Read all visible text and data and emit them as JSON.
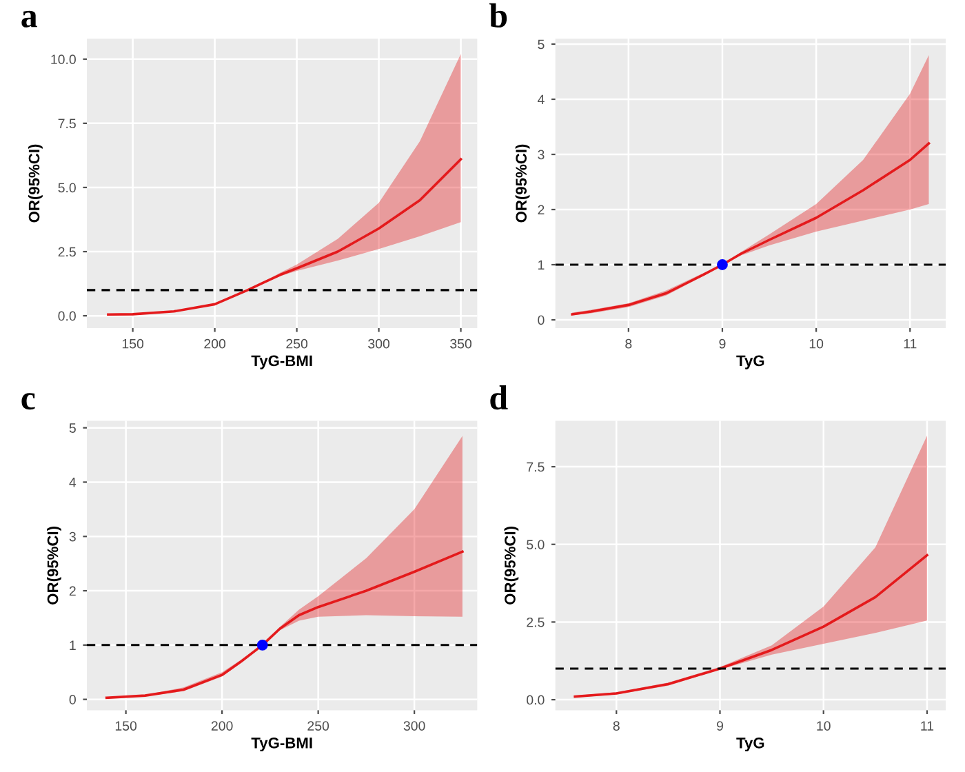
{
  "chart_data": [
    {
      "type": "line",
      "title": "a",
      "xlabel": "TyG-BMI",
      "ylabel": "OR(95%CI)",
      "xlim": [
        122,
        360
      ],
      "ylim": [
        -0.48,
        10.8
      ],
      "xticks": [
        150,
        200,
        250,
        300,
        350
      ],
      "yticks": [
        {
          "value": 0,
          "label": "0.0"
        },
        {
          "value": 2.5,
          "label": "2.5"
        },
        {
          "value": 5,
          "label": "5.0"
        },
        {
          "value": 7.5,
          "label": "7.5"
        },
        {
          "value": 10,
          "label": "10.0"
        }
      ],
      "grid": true,
      "series": [
        {
          "color": "#e41a1c",
          "x": [
            135,
            150,
            175,
            200,
            220,
            230,
            240,
            250,
            275,
            300,
            325,
            350
          ],
          "values": [
            0.05,
            0.06,
            0.17,
            0.45,
            1.0,
            1.3,
            1.6,
            1.85,
            2.5,
            3.4,
            4.5,
            6.1
          ],
          "lower": [
            0.04,
            0.05,
            0.15,
            0.42,
            0.97,
            1.27,
            1.55,
            1.75,
            2.15,
            2.6,
            3.1,
            3.65
          ],
          "upper": [
            0.06,
            0.07,
            0.19,
            0.48,
            1.03,
            1.33,
            1.68,
            2.0,
            3.0,
            4.4,
            6.8,
            10.2
          ]
        }
      ],
      "ref_lines": [
        {
          "axis": "y",
          "value": 1,
          "color": "#000000",
          "line_style": "dashed"
        }
      ]
    },
    {
      "type": "line",
      "title": "b",
      "xlabel": "TyG",
      "ylabel": "OR(95%CI)",
      "xlim": [
        7.22,
        11.38
      ],
      "ylim": [
        -0.15,
        5.1
      ],
      "xticks": [
        8,
        9,
        10,
        11
      ],
      "yticks": [
        0,
        1,
        2,
        3,
        4,
        5
      ],
      "grid": true,
      "series": [
        {
          "color": "#e41a1c",
          "x": [
            7.4,
            7.6,
            8,
            8.4,
            8.6,
            8.8,
            9,
            9.2,
            9.5,
            10,
            10.5,
            11,
            11.2
          ],
          "values": [
            0.1,
            0.15,
            0.27,
            0.48,
            0.65,
            0.82,
            1.0,
            1.2,
            1.45,
            1.85,
            2.35,
            2.9,
            3.2
          ],
          "lower": [
            0.08,
            0.12,
            0.23,
            0.44,
            0.62,
            0.8,
            1.0,
            1.17,
            1.35,
            1.6,
            1.8,
            2.0,
            2.1
          ],
          "upper": [
            0.13,
            0.18,
            0.3,
            0.53,
            0.69,
            0.85,
            1.0,
            1.23,
            1.55,
            2.1,
            2.9,
            4.1,
            4.8
          ]
        },
        {
          "type": "scatter",
          "color": "#0000ff",
          "x": [
            9
          ],
          "values": [
            1
          ]
        }
      ],
      "ref_lines": [
        {
          "axis": "y",
          "value": 1,
          "color": "#000000",
          "line_style": "dashed"
        }
      ]
    },
    {
      "type": "line",
      "title": "c",
      "xlabel": "TyG-BMI",
      "ylabel": "OR(95%CI)",
      "xlim": [
        129.7,
        332.7
      ],
      "ylim": [
        -0.2,
        5.13
      ],
      "xticks": [
        150,
        200,
        250,
        300
      ],
      "yticks": [
        0,
        1,
        2,
        3,
        4,
        5
      ],
      "grid": true,
      "series": [
        {
          "color": "#e41a1c",
          "x": [
            140,
            160,
            180,
            200,
            210,
            221,
            230,
            240,
            250,
            275,
            300,
            325
          ],
          "values": [
            0.03,
            0.07,
            0.18,
            0.45,
            0.7,
            1.0,
            1.3,
            1.55,
            1.7,
            2.0,
            2.35,
            2.72
          ],
          "lower": [
            0.02,
            0.06,
            0.15,
            0.42,
            0.68,
            1.0,
            1.27,
            1.45,
            1.52,
            1.55,
            1.53,
            1.52
          ],
          "upper": [
            0.04,
            0.08,
            0.22,
            0.5,
            0.73,
            1.0,
            1.33,
            1.65,
            1.9,
            2.6,
            3.5,
            4.85
          ]
        },
        {
          "type": "scatter",
          "color": "#0000ff",
          "x": [
            221
          ],
          "values": [
            1
          ]
        }
      ],
      "ref_lines": [
        {
          "axis": "y",
          "value": 1,
          "color": "#000000",
          "line_style": "dashed"
        }
      ]
    },
    {
      "type": "line",
      "title": "d",
      "xlabel": "TyG",
      "ylabel": "OR(95%CI)",
      "xlim": [
        7.41,
        11.18
      ],
      "ylim": [
        -0.34,
        8.98
      ],
      "xticks": [
        8,
        9,
        10,
        11
      ],
      "yticks": [
        {
          "value": 0,
          "label": "0.0"
        },
        {
          "value": 2.5,
          "label": "2.5"
        },
        {
          "value": 5,
          "label": "5.0"
        },
        {
          "value": 7.5,
          "label": "7.5"
        }
      ],
      "grid": true,
      "series": [
        {
          "color": "#e41a1c",
          "x": [
            7.6,
            8,
            8.5,
            9,
            9.5,
            10,
            10.5,
            11
          ],
          "values": [
            0.1,
            0.2,
            0.5,
            1.0,
            1.6,
            2.35,
            3.3,
            4.65
          ],
          "lower": [
            0.07,
            0.17,
            0.45,
            0.97,
            1.45,
            1.8,
            2.15,
            2.55
          ],
          "upper": [
            0.13,
            0.24,
            0.55,
            1.05,
            1.75,
            3.0,
            4.9,
            8.5
          ]
        }
      ],
      "ref_lines": [
        {
          "axis": "y",
          "value": 1,
          "color": "#000000",
          "line_style": "dashed"
        }
      ]
    }
  ]
}
